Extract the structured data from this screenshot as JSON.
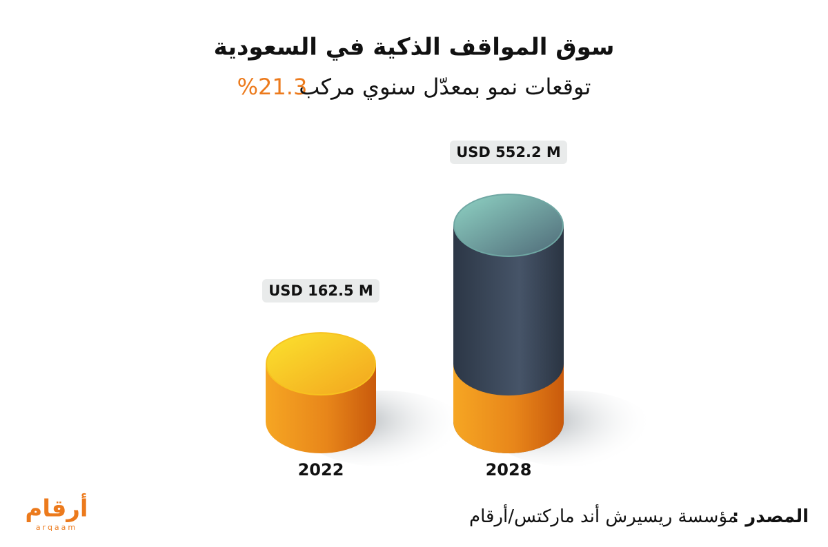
{
  "chart_data": {
    "type": "cylinder",
    "title": "سوق المواقف الذكية في السعودية",
    "subtitle": "توقعات نمو بمعدّل سنوي مركب",
    "subtitle_highlight": "21.3%",
    "categories": [
      "2022",
      "2028"
    ],
    "values": [
      162.5,
      552.2
    ],
    "value_labels": [
      "USD 162.5 M",
      "USD 552.2 M"
    ],
    "colors": [
      "#f29a1c",
      "#3a4656"
    ],
    "source_label": "المصدر :",
    "source": "مؤسسة ريسيرش أند ماركتس/أرقام",
    "logo": "أرقام",
    "logo_latin": "arqaam"
  }
}
